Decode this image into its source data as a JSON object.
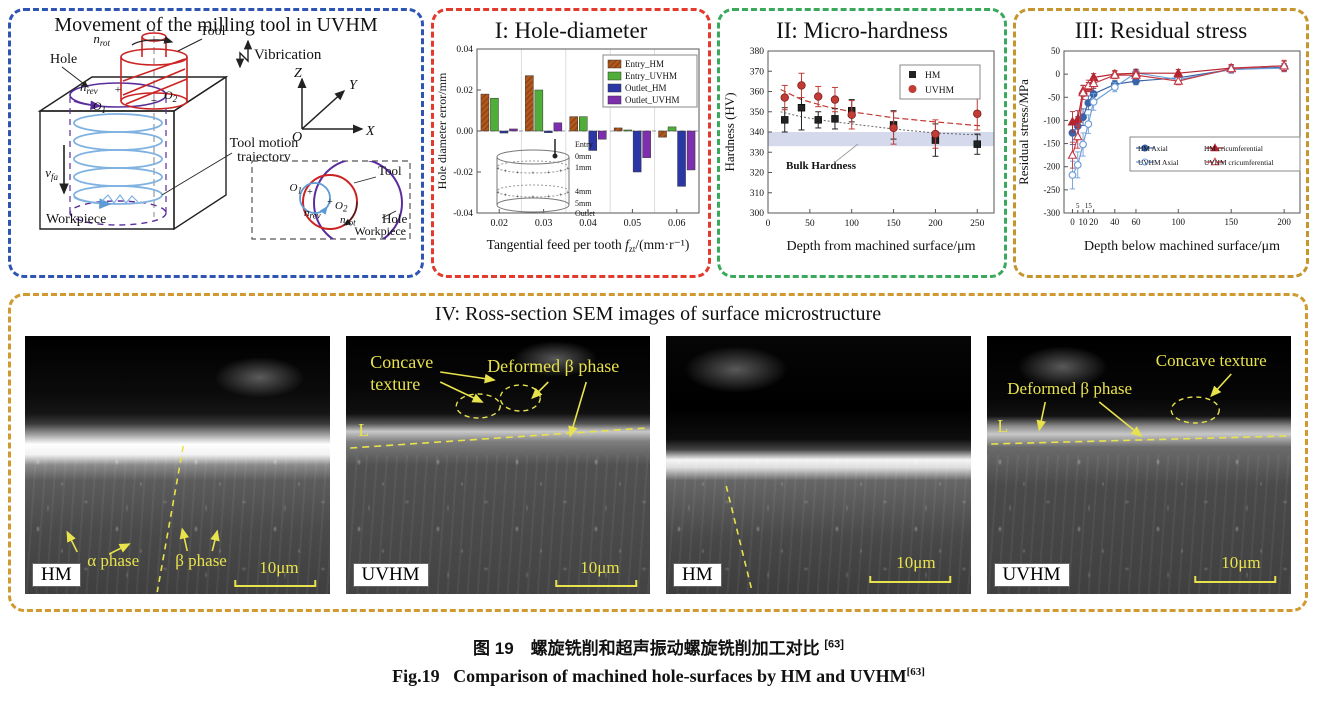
{
  "panelA": {
    "title": "Movement of the milling tool in UVHM",
    "hole": "Hole",
    "tool": "Tool",
    "vibration": "Vibrication",
    "workpiece": "Workpiece",
    "trajectory1": "Tool motion",
    "trajectory2": "trajectory",
    "axes": {
      "z": "Z",
      "y": "Y",
      "x": "X",
      "o": "O"
    },
    "n_rot": {
      "base": "n",
      "sub": "rot"
    },
    "n_rev": {
      "base": "n",
      "sub": "rev"
    },
    "o1": {
      "base": "O",
      "sub": "1"
    },
    "o2": {
      "base": "O",
      "sub": "2"
    },
    "v_fa": {
      "base": "v",
      "sub": "fa"
    },
    "inset": {
      "tool": "Tool",
      "hole": "Hole",
      "workpiece": "Workpiece",
      "o1": {
        "base": "O",
        "sub": "1"
      },
      "o2": {
        "base": "O",
        "sub": "2"
      },
      "n_rev": {
        "base": "n",
        "sub": "rev"
      },
      "n_rot": {
        "base": "n",
        "sub": "rot"
      }
    }
  },
  "chart_data": [
    {
      "id": "hole_diameter",
      "type": "bar",
      "title": "I: Hole-diameter",
      "ylabel": "Hole diameter error/mm",
      "xlabel_pre": "Tangential feed per tooth ",
      "xlabel_var": "f",
      "xlabel_sub": "zt",
      "xlabel_post": "/(mm·r⁻¹)",
      "categories": [
        0.02,
        0.03,
        0.04,
        0.05,
        0.06
      ],
      "ylim": [
        -0.04,
        0.04
      ],
      "yticks": [
        -0.04,
        -0.02,
        0.0,
        0.02,
        0.04
      ],
      "series": [
        {
          "name": "Entry_HM",
          "color": "#b1571c",
          "values": [
            0.018,
            0.027,
            0.007,
            0.0015,
            -0.003
          ]
        },
        {
          "name": "Entry_UVHM",
          "color": "#4fae38",
          "values": [
            0.016,
            0.02,
            0.007,
            0.0005,
            0.002
          ]
        },
        {
          "name": "Outlet_HM",
          "color": "#2c37a6",
          "values": [
            -0.001,
            -0.0008,
            -0.0095,
            -0.02,
            -0.027
          ]
        },
        {
          "name": "Outlet_UVHM",
          "color": "#7e2fae",
          "values": [
            0.001,
            0.004,
            -0.004,
            -0.013,
            -0.019
          ]
        }
      ],
      "inset_labels": [
        "Entry",
        "0mm",
        "1mm",
        "4mm",
        "5mm",
        "Outlet"
      ]
    },
    {
      "id": "micro_hardness",
      "type": "scatter",
      "title": "II: Micro-hardness",
      "xlabel": "Depth from machined surface/μm",
      "ylabel": "Hardness (HV)",
      "xlim": [
        0,
        270
      ],
      "ylim": [
        300,
        380
      ],
      "xticks": [
        0,
        50,
        100,
        150,
        200,
        250
      ],
      "yticks": [
        300,
        310,
        320,
        330,
        340,
        350,
        360,
        370,
        380
      ],
      "band": {
        "label": "Bulk Hardness",
        "y1": 333,
        "y2": 340,
        "color": "#aab4d8"
      },
      "x": [
        20,
        40,
        60,
        80,
        100,
        150,
        200,
        250
      ],
      "series": [
        {
          "name": "HM",
          "marker": "square",
          "color": "#222222",
          "values": [
            346,
            352,
            346,
            346.5,
            350.5,
            343.5,
            336,
            334
          ],
          "err": [
            6,
            11,
            4,
            5,
            5.5,
            7,
            8,
            5
          ],
          "trend": [
            [
              15,
              350
            ],
            [
              40,
              347.5
            ],
            [
              70,
              345.5
            ],
            [
              100,
              344
            ],
            [
              150,
              341.5
            ],
            [
              200,
              339.5
            ],
            [
              255,
              338.5
            ]
          ]
        },
        {
          "name": "UVHM",
          "marker": "circle",
          "color": "#c23b34",
          "values": [
            357,
            363,
            357.5,
            356,
            348.5,
            342,
            339,
            349
          ],
          "err": [
            6,
            6,
            5,
            6,
            7,
            8,
            7,
            8
          ],
          "trend": [
            [
              15,
              361
            ],
            [
              40,
              356
            ],
            [
              70,
              352.5
            ],
            [
              100,
              350
            ],
            [
              150,
              347
            ],
            [
              200,
              345
            ],
            [
              255,
              343
            ]
          ]
        }
      ]
    },
    {
      "id": "residual_stress",
      "type": "line",
      "title": "III: Residual stress",
      "xlabel": "Depth below machined surface/μm",
      "ylabel": "Residual stress/MPa",
      "xlim": [
        -8,
        215
      ],
      "ylim": [
        -300,
        50
      ],
      "xticks": [
        0,
        10,
        20,
        40,
        60,
        100,
        150,
        200
      ],
      "minor_xticks": [
        5,
        15
      ],
      "yticks": [
        50,
        0,
        -50,
        -100,
        -150,
        -200,
        -250,
        -300
      ],
      "x": [
        0,
        5,
        10,
        15,
        20,
        40,
        60,
        100,
        150,
        200
      ],
      "series": [
        {
          "name": "HM  Axial",
          "marker": "circle",
          "fill": true,
          "color": "#3a64a8",
          "values": [
            -127,
            -112,
            -93,
            -62,
            -43,
            -22,
            -15,
            -8,
            10,
            15
          ],
          "err": [
            25,
            20,
            18,
            15,
            12,
            8,
            8,
            8,
            8,
            8
          ]
        },
        {
          "name": "UVHM  Axial",
          "marker": "circle",
          "fill": false,
          "color": "#6f9fd8",
          "values": [
            -218,
            -196,
            -152,
            -108,
            -60,
            -28,
            3,
            -12,
            10,
            13
          ],
          "err": [
            30,
            28,
            25,
            20,
            18,
            10,
            8,
            8,
            8,
            8
          ]
        },
        {
          "name": "HM cricumferential",
          "marker": "triangle",
          "fill": true,
          "color": "#b4242f",
          "values": [
            -103,
            -97,
            -36,
            -28,
            -7,
            0,
            2,
            2,
            13,
            18
          ],
          "err": [
            22,
            18,
            12,
            10,
            8,
            8,
            8,
            8,
            8,
            10
          ]
        },
        {
          "name": "UVHM cricumferential",
          "marker": "triangle",
          "fill": false,
          "color": "#c43b46",
          "values": [
            -175,
            -135,
            -40,
            -25,
            -20,
            -2,
            -2,
            -15,
            12,
            18
          ],
          "err": [
            28,
            25,
            15,
            12,
            10,
            8,
            8,
            8,
            8,
            12
          ]
        }
      ]
    }
  ],
  "panelIV": {
    "title": "IV: Ross-section SEM images of surface microstructure",
    "sem1": {
      "tag": "HM",
      "alpha": "α phase",
      "beta": "β phase",
      "scale": "10μm"
    },
    "sem2": {
      "tag": "UVHM",
      "concave1": "Concave",
      "concave2": "texture",
      "deformed": "Deformed β phase",
      "line_label": "L",
      "scale": "10μm"
    },
    "sem3": {
      "tag": "HM",
      "scale": "10μm"
    },
    "sem4": {
      "tag": "UVHM",
      "deformed": "Deformed β phase",
      "concave": "Concave texture",
      "line_label": "L",
      "scale": "10μm"
    }
  },
  "caption": {
    "zh_main": "图 19　螺旋铣削和超声振动螺旋铣削加工对比 ",
    "zh_sup": "[63]",
    "en_main": "Fig.19  Comparison of machined hole-surfaces by HM and UVHM",
    "en_sup": "[63]"
  }
}
